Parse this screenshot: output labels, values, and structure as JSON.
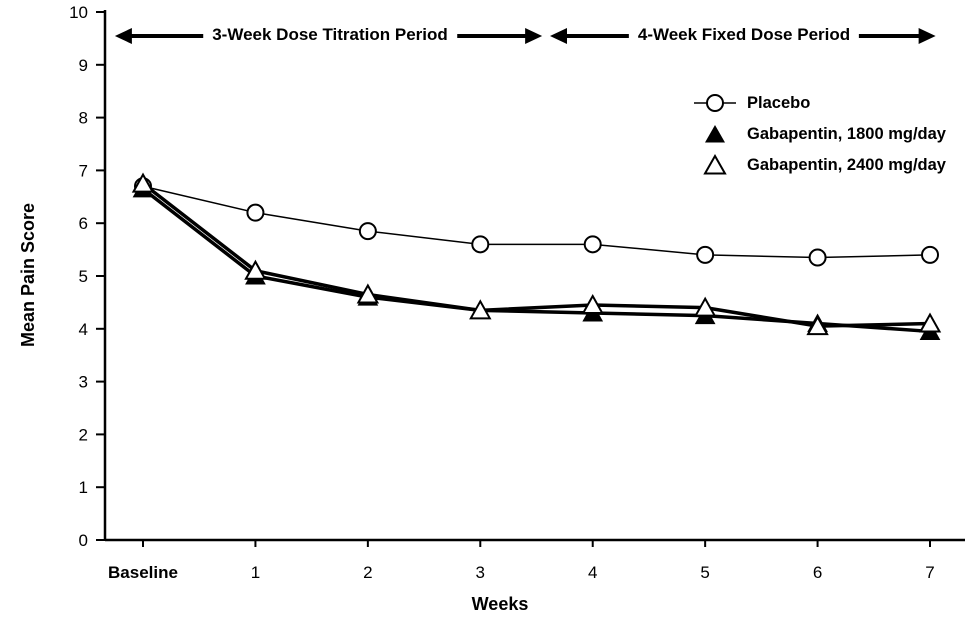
{
  "chart_data": {
    "type": "line",
    "title": "",
    "xlabel": "Weeks",
    "ylabel": "Mean Pain Score",
    "ylim": [
      0,
      10
    ],
    "grid": false,
    "legend_position": "top-right",
    "x": [
      0,
      1,
      2,
      3,
      4,
      5,
      6,
      7
    ],
    "x_tick_labels": [
      "Baseline",
      "1",
      "2",
      "3",
      "4",
      "5",
      "6",
      "7"
    ],
    "y_tick_labels": [
      "0",
      "1",
      "2",
      "3",
      "4",
      "5",
      "6",
      "7",
      "8",
      "9",
      "10"
    ],
    "annotations": [
      {
        "label": "3-Week Dose Titration Period",
        "x_start": -0.25,
        "x_end": 3.55
      },
      {
        "label": "4-Week Fixed Dose Period",
        "x_start": 3.62,
        "x_end": 7.05
      }
    ],
    "series": [
      {
        "name": "Placebo",
        "marker": "open-circle",
        "line_width": 1.5,
        "values": [
          6.7,
          6.2,
          5.85,
          5.6,
          5.6,
          5.4,
          5.35,
          5.4
        ]
      },
      {
        "name": "Gabapentin, 1800 mg/day",
        "marker": "filled-triangle",
        "line_width": 3.5,
        "values": [
          6.65,
          5.0,
          4.6,
          4.35,
          4.3,
          4.25,
          4.1,
          3.95
        ]
      },
      {
        "name": "Gabapentin, 2400 mg/day",
        "marker": "open-triangle",
        "line_width": 3.5,
        "values": [
          6.75,
          5.1,
          4.65,
          4.35,
          4.45,
          4.4,
          4.05,
          4.1
        ]
      }
    ]
  }
}
